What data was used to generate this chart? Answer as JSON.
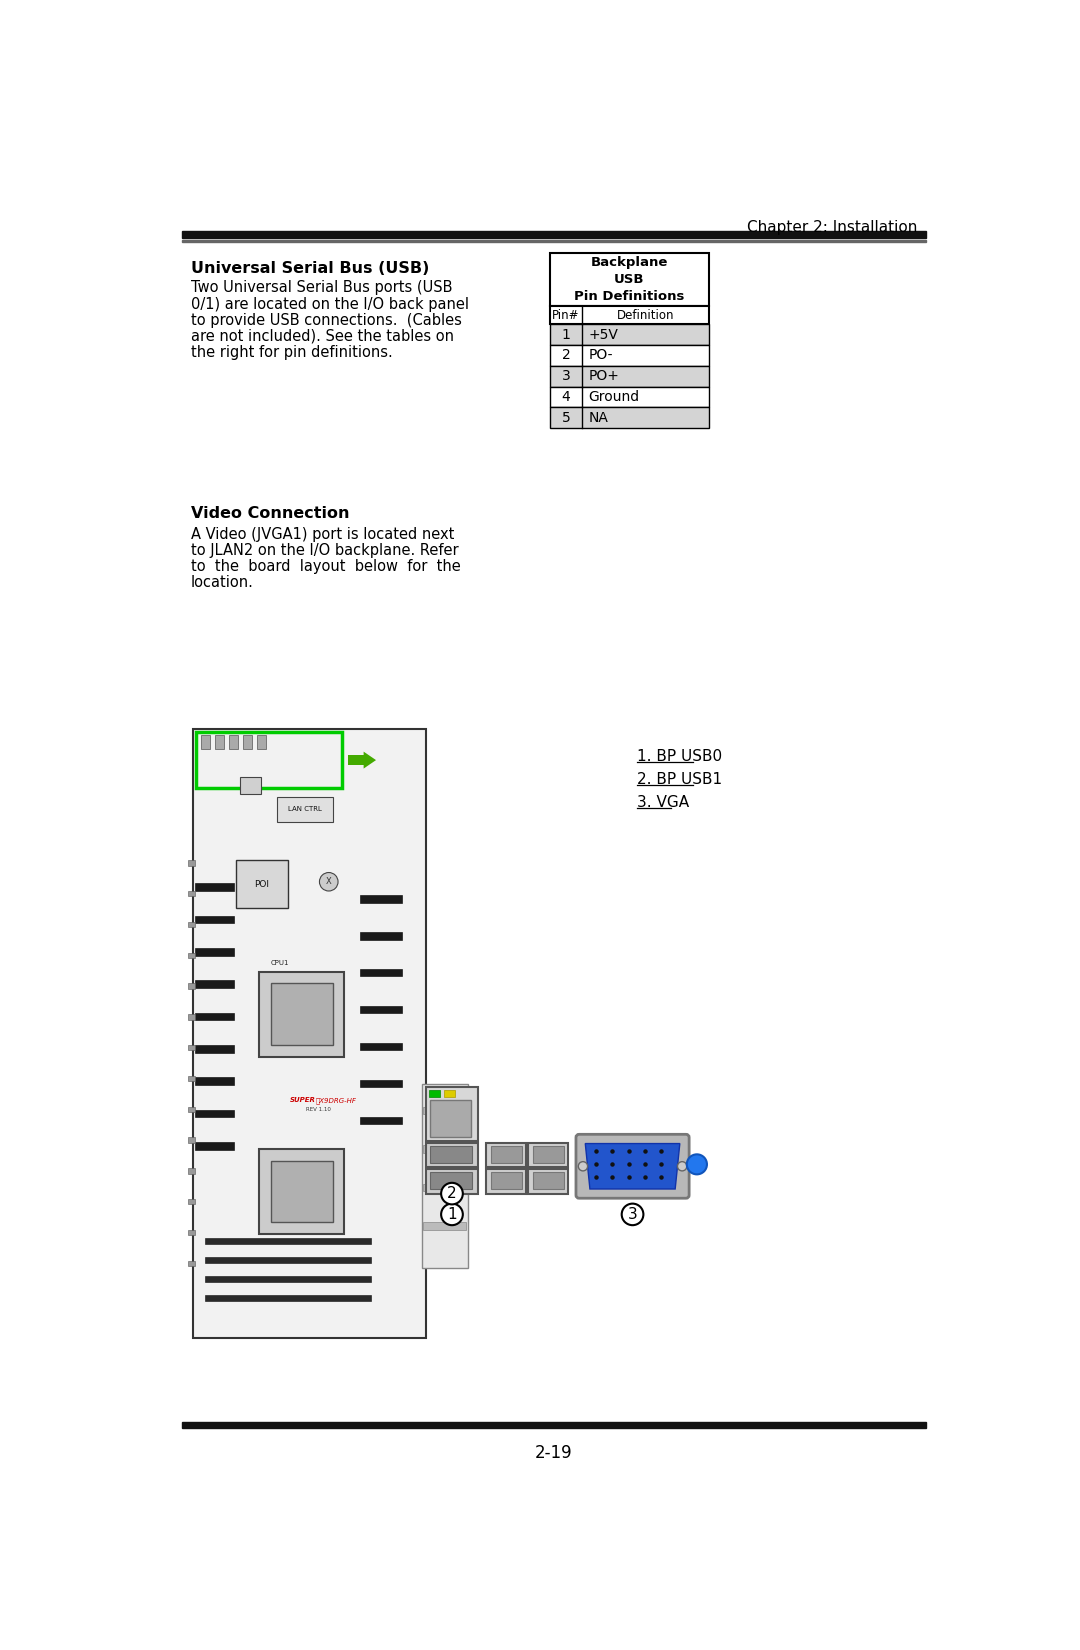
{
  "page_header": "Chapter 2: Installation",
  "section1_title": "Universal Serial Bus (USB)",
  "section1_body_lines": [
    "Two Universal Serial Bus ports (USB",
    "0/1) are located on the I/O back panel",
    "to provide USB connections.  (Cables",
    "are not included). See the tables on",
    "the right for pin definitions."
  ],
  "table_title_lines": [
    "Backplane",
    "USB",
    "Pin Definitions"
  ],
  "table_header_pin": "Pin#",
  "table_header_def": "Definition",
  "table_rows": [
    {
      "pin": "1",
      "def": "+5V",
      "shaded": true
    },
    {
      "pin": "2",
      "def": "PO-",
      "shaded": false
    },
    {
      "pin": "3",
      "def": "PO+",
      "shaded": true
    },
    {
      "pin": "4",
      "def": "Ground",
      "shaded": false
    },
    {
      "pin": "5",
      "def": "NA",
      "shaded": true
    }
  ],
  "section2_title": "Video Connection",
  "section2_body_lines": [
    "A Video (JVGA1) port is located next",
    "to JLAN2 on the I/O backplane. Refer",
    "to  the  board  layout  below  for  the",
    "location."
  ],
  "legend_items": [
    "1. BP USB0",
    "2. BP USB1",
    "3. VGA"
  ],
  "page_number": "2-19",
  "bg_color": "#ffffff",
  "text_color": "#000000",
  "table_shade_color": "#d4d4d4",
  "table_border_color": "#000000",
  "green_box_color": "#00cc00",
  "green_arrow_color": "#44aa00"
}
